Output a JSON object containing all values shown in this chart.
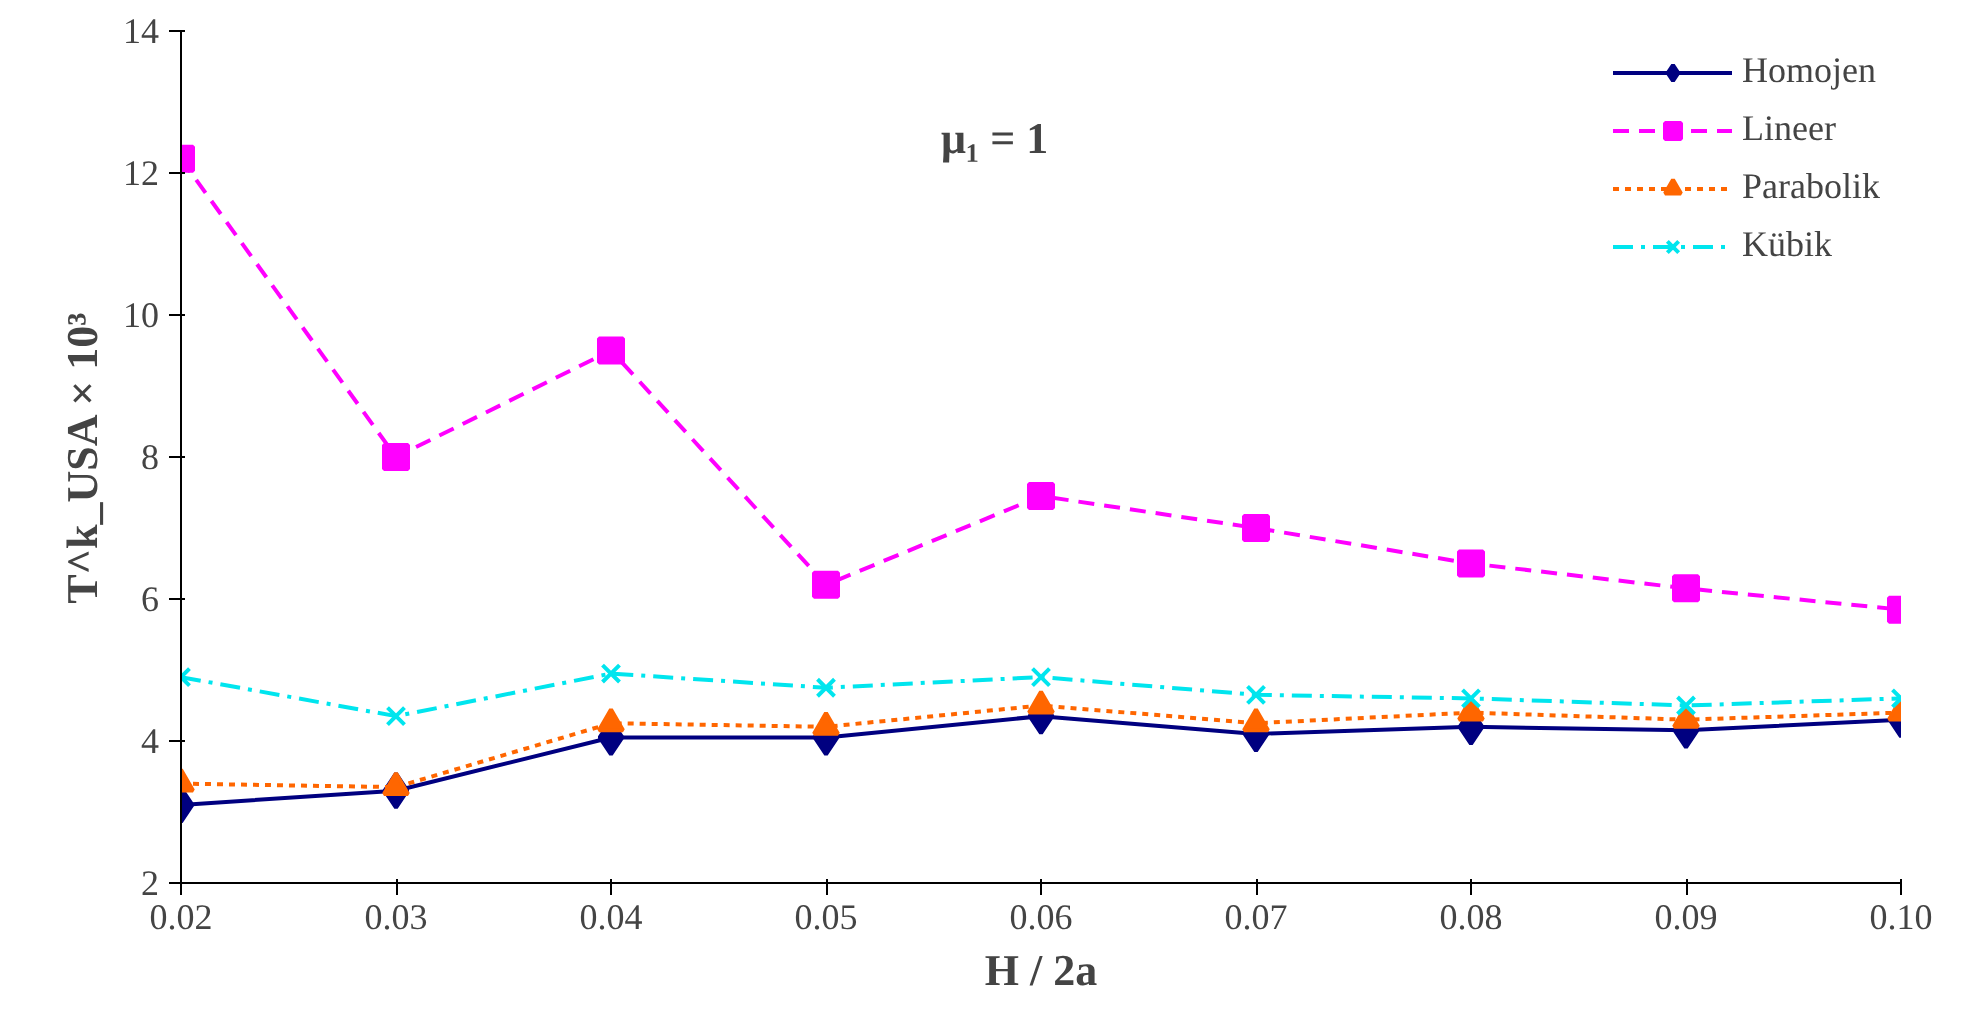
{
  "chart_data": {
    "type": "line",
    "xlabel": "H / 2a",
    "ylabel": "T^k_USA × 10³",
    "annotations": [
      "μ₁ = 1"
    ],
    "x": [
      0.02,
      0.03,
      0.04,
      0.05,
      0.06,
      0.07,
      0.08,
      0.09,
      0.1
    ],
    "xlim": [
      0.02,
      0.1
    ],
    "xticks": [
      0.02,
      0.03,
      0.04,
      0.05,
      0.06,
      0.07,
      0.08,
      0.09,
      {
        "value": 0.1,
        "label": "0.10"
      }
    ],
    "ylim": [
      2,
      14
    ],
    "yticks": [
      2,
      4,
      6,
      8,
      10,
      12,
      14
    ],
    "grid": false,
    "legend": "top right",
    "series": [
      {
        "name": "Homojen",
        "color": "#000080",
        "marker": "diamond",
        "line_style": "solid",
        "values": [
          3.1,
          3.3,
          4.05,
          4.05,
          4.35,
          4.1,
          4.2,
          4.15,
          4.3
        ]
      },
      {
        "name": "Lineer",
        "color": "#ff00ff",
        "marker": "square",
        "line_style": "dashed",
        "values": [
          12.2,
          8.0,
          9.5,
          6.2,
          7.45,
          7.0,
          6.5,
          6.15,
          5.85
        ]
      },
      {
        "name": "Parabolik",
        "color": "#ff6600",
        "marker": "triangle",
        "line_style": "dotted",
        "values": [
          3.4,
          3.35,
          4.25,
          4.2,
          4.5,
          4.25,
          4.4,
          4.3,
          4.4
        ]
      },
      {
        "name": "Kübik",
        "color": "#00e5ee",
        "marker": "cross",
        "line_style": "dashdot",
        "values": [
          4.9,
          4.35,
          4.95,
          4.75,
          4.9,
          4.65,
          4.6,
          4.5,
          4.6
        ]
      }
    ]
  }
}
